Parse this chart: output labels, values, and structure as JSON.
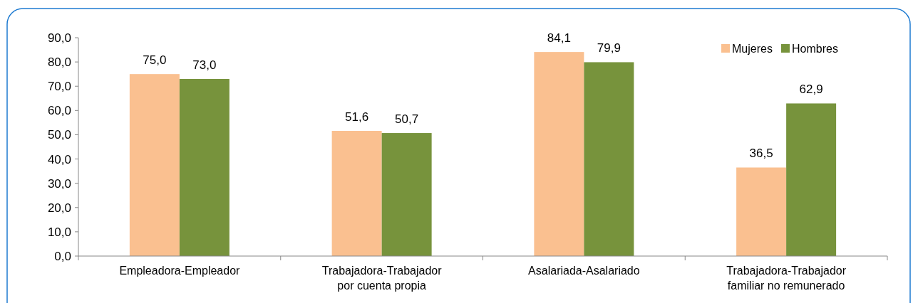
{
  "chart_data": {
    "type": "bar",
    "categories": [
      "Empleadora-Empleador",
      "Trabajadora-Trabajador\npor cuenta propia",
      "Asalariada-Asalariado",
      "Trabajadora-Trabajador\nfamiliar no remunerado"
    ],
    "series": [
      {
        "name": "Mujeres",
        "color": "#fac090",
        "values": [
          75.0,
          51.6,
          84.1,
          36.5
        ]
      },
      {
        "name": "Hombres",
        "color": "#77933c",
        "values": [
          73.0,
          50.7,
          79.9,
          62.9
        ]
      }
    ],
    "value_labels": [
      [
        "75,0",
        "51,6",
        "84,1",
        "36,5"
      ],
      [
        "73,0",
        "50,7",
        "79,9",
        "62,9"
      ]
    ],
    "ylim": [
      0,
      90
    ],
    "yticks": [
      {
        "value": 0,
        "label": "0,0"
      },
      {
        "value": 10,
        "label": "10,0"
      },
      {
        "value": 20,
        "label": "20,0"
      },
      {
        "value": 30,
        "label": "30,0"
      },
      {
        "value": 40,
        "label": "40,0"
      },
      {
        "value": 50,
        "label": "50,0"
      },
      {
        "value": 60,
        "label": "60,0"
      },
      {
        "value": 70,
        "label": "70,0"
      },
      {
        "value": 80,
        "label": "80,0"
      },
      {
        "value": 90,
        "label": "90,0"
      }
    ],
    "grid": false,
    "legend": "top right"
  }
}
